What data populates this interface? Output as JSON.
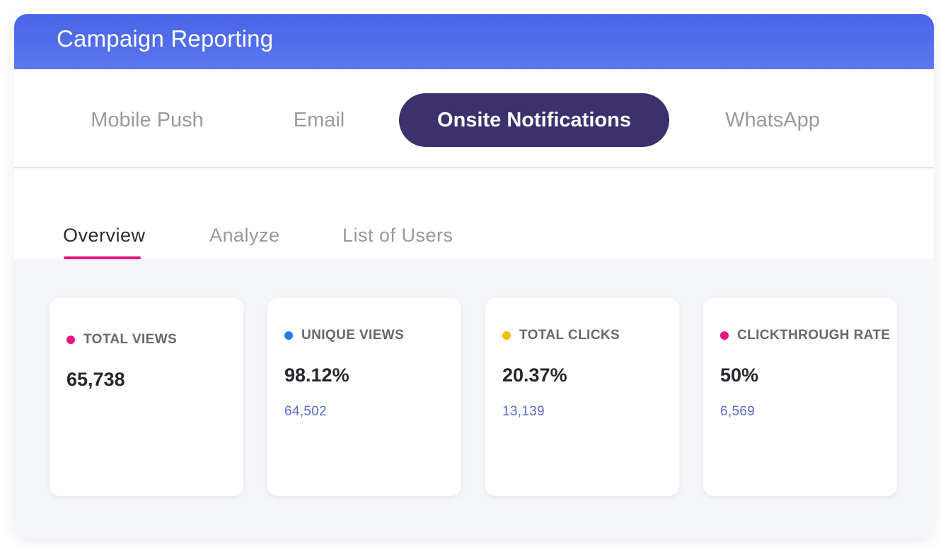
{
  "header": {
    "title": "Campaign Reporting"
  },
  "channel_tabs": [
    {
      "label": "Mobile Push",
      "active": false
    },
    {
      "label": "Email",
      "active": false
    },
    {
      "label": "Onsite Notifications",
      "active": true
    },
    {
      "label": "WhatsApp",
      "active": false
    }
  ],
  "sub_tabs": [
    {
      "label": "Overview",
      "active": true
    },
    {
      "label": "Analyze",
      "active": false
    },
    {
      "label": "List of Users",
      "active": false
    }
  ],
  "metrics": [
    {
      "label": "TOTAL VIEWS",
      "value": "65,738",
      "sub": "",
      "dot_color": "#e8157f"
    },
    {
      "label": "UNIQUE VIEWS",
      "value": "98.12%",
      "sub": "64,502",
      "dot_color": "#1e7bf0"
    },
    {
      "label": "TOTAL CLICKS",
      "value": "20.37%",
      "sub": "13,139",
      "dot_color": "#f6bd0c"
    },
    {
      "label": "CLICKTHROUGH RATE",
      "value": "50%",
      "sub": "6,569",
      "dot_color": "#e8157f"
    }
  ],
  "colors": {
    "header_gradient_start": "#4a63e8",
    "active_channel_bg": "#3c306d",
    "active_underline": "#e8157f",
    "sub_value_text": "#5a6bd6"
  }
}
